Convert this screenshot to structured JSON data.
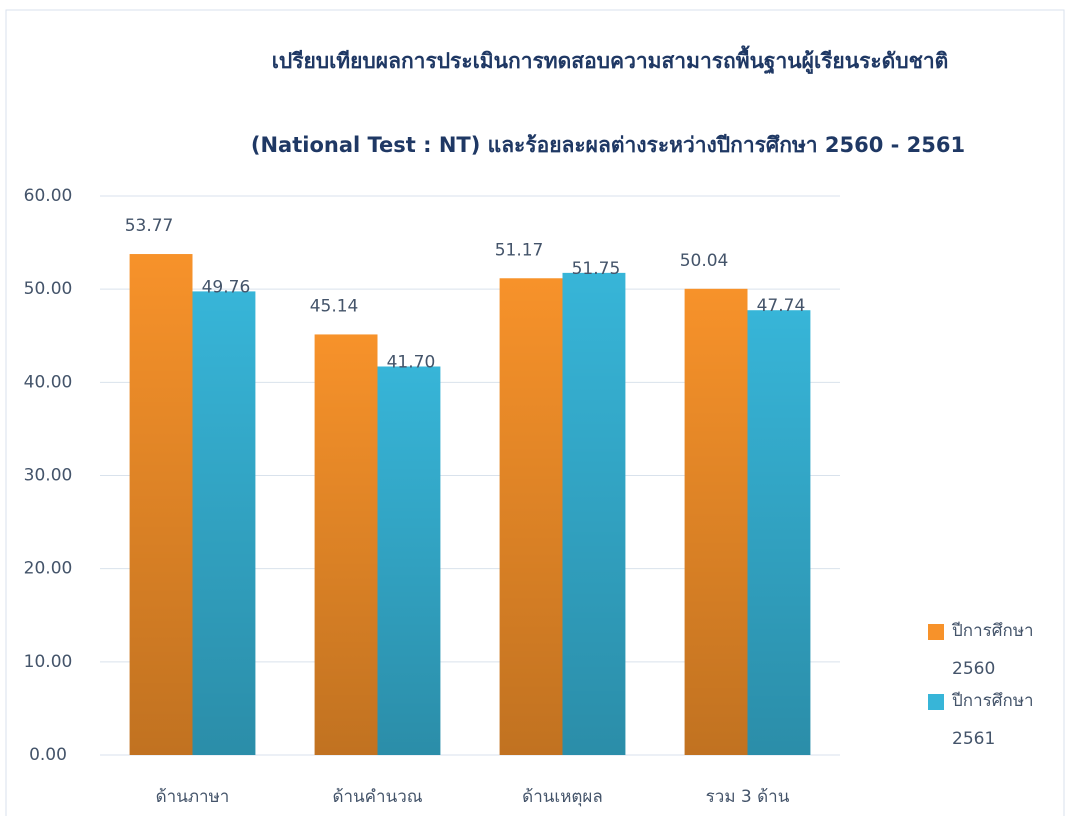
{
  "chart_data": {
    "type": "bar",
    "title": "เปรียบเทียบผลการประเมินการทดสอบความสามารถพื้นฐานผู้เรียนระดับชาติ",
    "subtitle": "(National Test : NT) และร้อยละผลต่างระหว่างปีการศึกษา  2560 - 2561",
    "categories": [
      "ด้านภาษา",
      "ด้านคำนวณ",
      "ด้านเหตุผล",
      "รวม 3 ด้าน"
    ],
    "series": [
      {
        "name": "ปีการศึกษา 2560",
        "color": "#f7922a",
        "values": [
          53.77,
          45.14,
          51.17,
          50.04
        ],
        "value_labels": [
          "53.77",
          "45.14",
          "51.17",
          "50.04"
        ]
      },
      {
        "name": "ปีการศึกษา 2561",
        "color": "#37b5d8",
        "values": [
          49.76,
          41.7,
          51.75,
          47.74
        ],
        "value_labels": [
          "49.76",
          "41.70",
          "51.75",
          "47.74"
        ]
      }
    ],
    "ylim": [
      0,
      60
    ],
    "yticks": [
      {
        "value": 0,
        "label": "0.00"
      },
      {
        "value": 10,
        "label": "10.00"
      },
      {
        "value": 20,
        "label": "20.00"
      },
      {
        "value": 30,
        "label": "30.00"
      },
      {
        "value": 40,
        "label": "40.00"
      },
      {
        "value": 50,
        "label": "50.00"
      },
      {
        "value": 60,
        "label": "60.00"
      }
    ],
    "grid": true,
    "legend": "right"
  }
}
